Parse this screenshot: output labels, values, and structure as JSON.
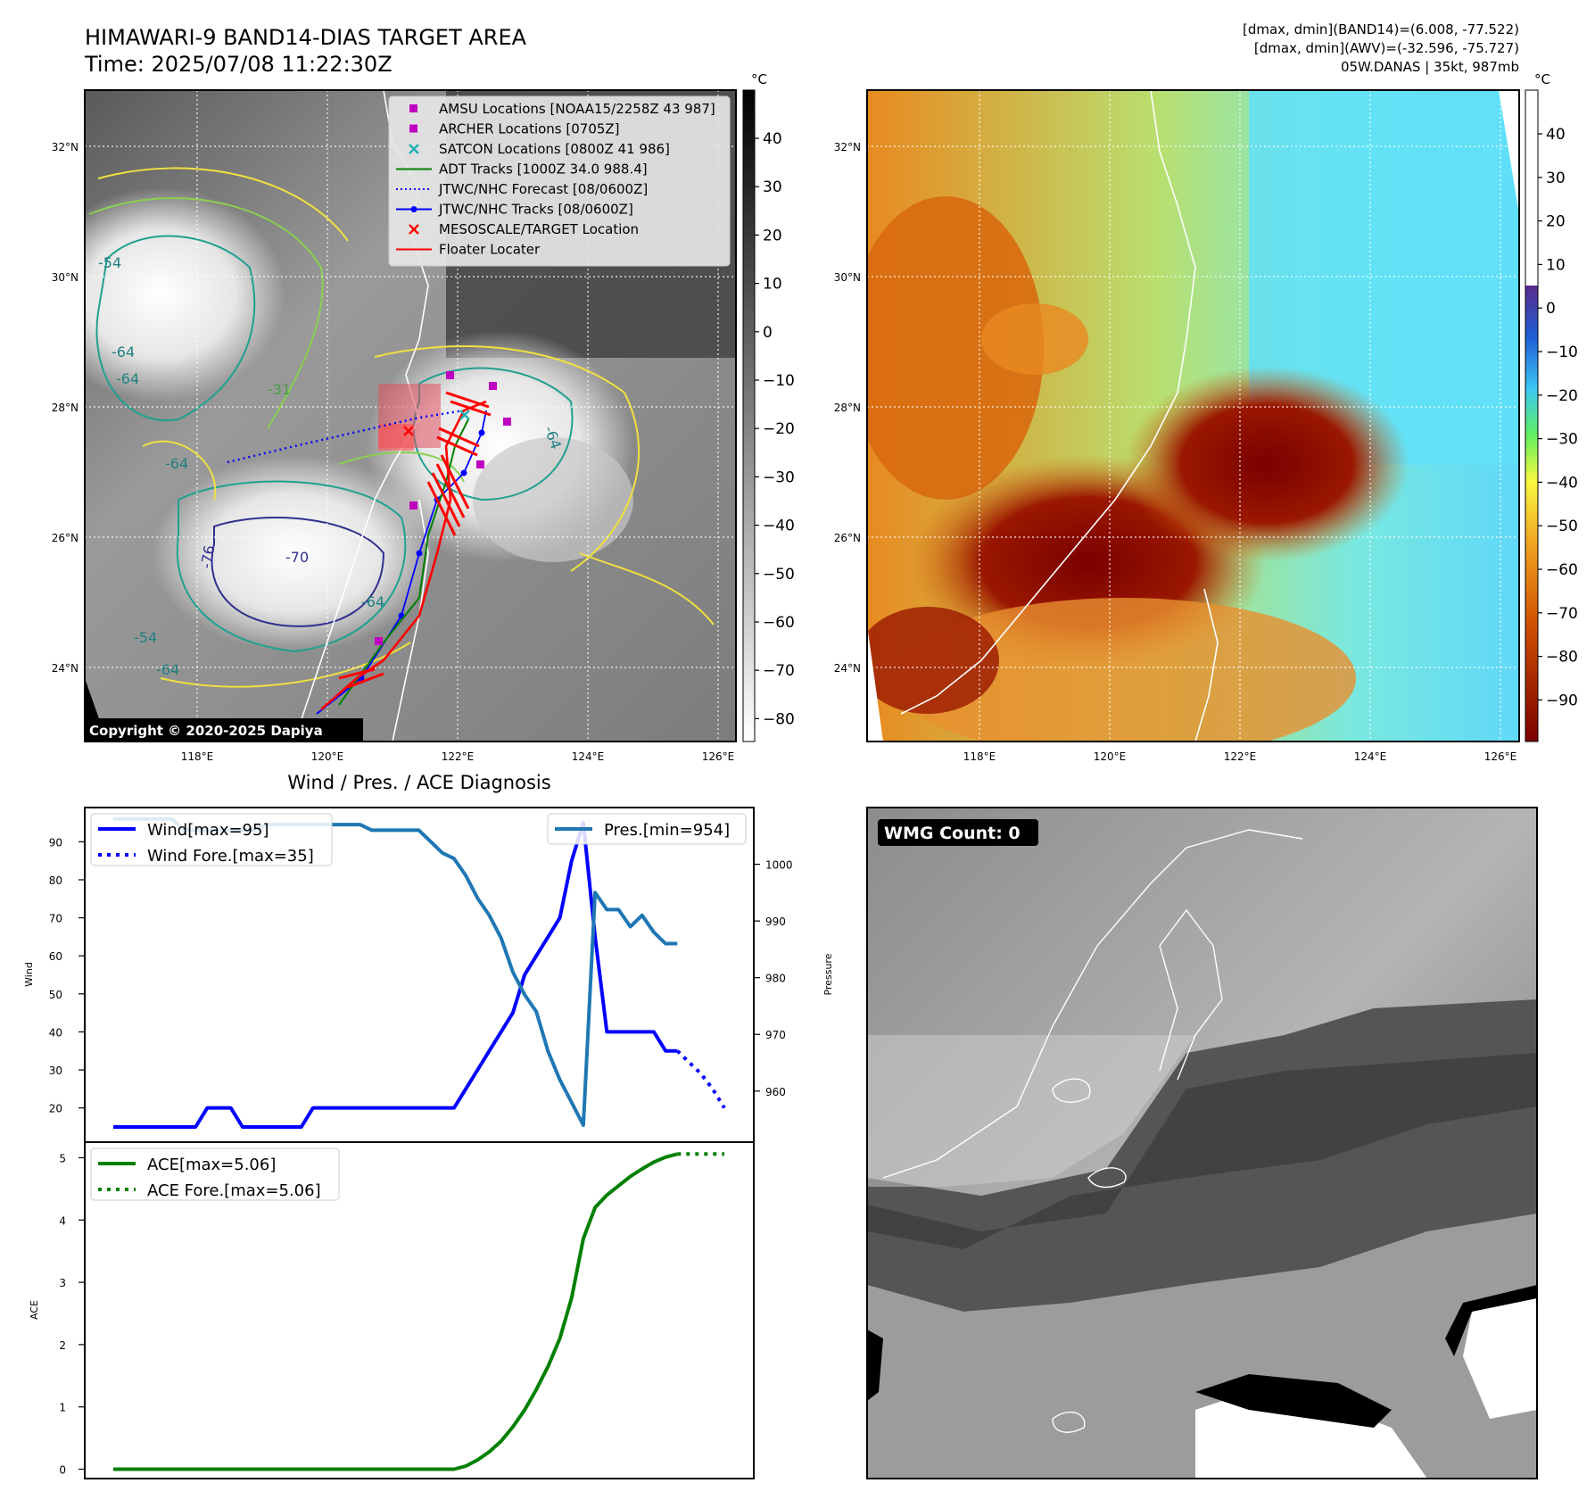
{
  "header": {
    "title_line1": "HIMAWARI-9 BAND14-DIAS TARGET AREA",
    "title_line2": "Time: 2025/07/08 11:22:30Z",
    "info_line1": "[dmax, dmin](BAND14)=(6.008, -77.522)",
    "info_line2": "[dmax, dmin](AWV)=(-32.596, -75.727)",
    "info_line3": "05W.DANAS | 35kt, 987mb"
  },
  "map_axes": {
    "lat_ticks": [
      "32°N",
      "30°N",
      "28°N",
      "26°N",
      "24°N"
    ],
    "lon_ticks": [
      "118°E",
      "120°E",
      "122°E",
      "124°E",
      "126°E"
    ]
  },
  "ir_panel": {
    "legend": [
      {
        "label": "AMSU Locations [NOAA15/2258Z 43 987]",
        "marker": "square",
        "color": "#c000c0"
      },
      {
        "label": "ARCHER Locations [0705Z]",
        "marker": "square",
        "color": "#c000c0"
      },
      {
        "label": "SATCON Locations [0800Z 41 986]",
        "marker": "x",
        "color": "#20b0b0"
      },
      {
        "label": "ADT Tracks [1000Z 34.0 988.4]",
        "marker": "line",
        "color": "#008000"
      },
      {
        "label": "JTWC/NHC Forecast [08/0600Z]",
        "marker": "dotted",
        "color": "#0000ff"
      },
      {
        "label": "JTWC/NHC Tracks [08/0600Z]",
        "marker": "line-dot",
        "color": "#0000ff"
      },
      {
        "label": "MESOSCALE/TARGET Location",
        "marker": "x",
        "color": "#ff0000"
      },
      {
        "label": "Floater Locater",
        "marker": "line",
        "color": "#ff0000"
      }
    ],
    "contour_labels": [
      "-54",
      "-64",
      "-64",
      "-64",
      "-31",
      "-76",
      "-64",
      "-54",
      "-64",
      "-64",
      "-70"
    ],
    "copyright": "Copyright © 2020-2025 Dapiya",
    "colorbar_unit": "°C",
    "colorbar_ticks": [
      "40",
      "30",
      "20",
      "10",
      "0",
      "−10",
      "−20",
      "−30",
      "−40",
      "−50",
      "−60",
      "−70",
      "−80"
    ]
  },
  "wv_panel": {
    "colorbar_unit": "°C",
    "colorbar_ticks": [
      "40",
      "30",
      "20",
      "10",
      "0",
      "−10",
      "−20",
      "−30",
      "−40",
      "−50",
      "−60",
      "−70",
      "−80",
      "−90"
    ]
  },
  "wmg_panel": {
    "label": "WMG Count: 0"
  },
  "chart_data": [
    {
      "type": "line",
      "title": "Wind / Pres. / ACE Diagnosis",
      "ylabel": "Wind",
      "y2label": "Pressure",
      "ylim": [
        11,
        99
      ],
      "y2lim": [
        951,
        1010
      ],
      "yticks": [
        20,
        30,
        40,
        50,
        60,
        70,
        80,
        90
      ],
      "y2ticks": [
        960,
        970,
        980,
        990,
        1000
      ],
      "legend_left": [
        "Wind[max=95]",
        "Wind Fore.[max=35]"
      ],
      "legend_right": [
        "Pres.[min=954]"
      ],
      "series": [
        {
          "name": "Wind[max=95]",
          "axis": "left",
          "color": "#0000ff",
          "style": "solid",
          "values": [
            [
              0,
              15
            ],
            [
              1,
              15
            ],
            [
              2,
              15
            ],
            [
              3,
              15
            ],
            [
              4,
              15
            ],
            [
              5,
              15
            ],
            [
              6,
              15
            ],
            [
              7,
              15
            ],
            [
              8,
              20
            ],
            [
              9,
              20
            ],
            [
              10,
              20
            ],
            [
              11,
              15
            ],
            [
              12,
              15
            ],
            [
              13,
              15
            ],
            [
              14,
              15
            ],
            [
              15,
              15
            ],
            [
              16,
              15
            ],
            [
              17,
              20
            ],
            [
              18,
              20
            ],
            [
              19,
              20
            ],
            [
              20,
              20
            ],
            [
              21,
              20
            ],
            [
              22,
              20
            ],
            [
              23,
              20
            ],
            [
              24,
              20
            ],
            [
              25,
              20
            ],
            [
              26,
              20
            ],
            [
              27,
              20
            ],
            [
              28,
              20
            ],
            [
              29,
              20
            ],
            [
              30,
              25
            ],
            [
              31,
              30
            ],
            [
              32,
              35
            ],
            [
              33,
              40
            ],
            [
              34,
              45
            ],
            [
              35,
              55
            ],
            [
              36,
              60
            ],
            [
              37,
              65
            ],
            [
              38,
              70
            ],
            [
              39,
              85
            ],
            [
              40,
              95
            ],
            [
              41,
              65
            ],
            [
              42,
              40
            ],
            [
              43,
              40
            ],
            [
              44,
              40
            ],
            [
              45,
              40
            ],
            [
              46,
              40
            ],
            [
              47,
              35
            ],
            [
              48,
              35
            ]
          ]
        },
        {
          "name": "Wind Fore.[max=35]",
          "axis": "left",
          "color": "#0000ff",
          "style": "dotted",
          "values": [
            [
              48,
              35
            ],
            [
              49,
              32
            ],
            [
              50,
              29
            ],
            [
              51,
              25
            ],
            [
              52,
              20
            ]
          ]
        },
        {
          "name": "Pres.[min=954]",
          "axis": "right",
          "color": "#1f77b4",
          "style": "solid",
          "values": [
            [
              0,
              1008
            ],
            [
              1,
              1008
            ],
            [
              2,
              1008
            ],
            [
              3,
              1008
            ],
            [
              4,
              1008
            ],
            [
              5,
              1008
            ],
            [
              6,
              1006
            ],
            [
              7,
              1006
            ],
            [
              8,
              1006
            ],
            [
              9,
              1006
            ],
            [
              10,
              1006
            ],
            [
              11,
              1006
            ],
            [
              12,
              1006
            ],
            [
              13,
              1007
            ],
            [
              14,
              1007
            ],
            [
              15,
              1007
            ],
            [
              16,
              1007
            ],
            [
              17,
              1007
            ],
            [
              18,
              1007
            ],
            [
              19,
              1007
            ],
            [
              20,
              1007
            ],
            [
              21,
              1007
            ],
            [
              22,
              1006
            ],
            [
              23,
              1006
            ],
            [
              24,
              1006
            ],
            [
              25,
              1006
            ],
            [
              26,
              1006
            ],
            [
              27,
              1004
            ],
            [
              28,
              1002
            ],
            [
              29,
              1001
            ],
            [
              30,
              998
            ],
            [
              31,
              994
            ],
            [
              32,
              991
            ],
            [
              33,
              987
            ],
            [
              34,
              981
            ],
            [
              35,
              977
            ],
            [
              36,
              974
            ],
            [
              37,
              967
            ],
            [
              38,
              962
            ],
            [
              39,
              958
            ],
            [
              40,
              954
            ],
            [
              41,
              995
            ],
            [
              42,
              992
            ],
            [
              43,
              992
            ],
            [
              44,
              989
            ],
            [
              45,
              991
            ],
            [
              46,
              988
            ],
            [
              47,
              986
            ],
            [
              48,
              986
            ]
          ]
        }
      ]
    },
    {
      "type": "line",
      "ylabel": "ACE",
      "ylim": [
        -0.15,
        5.25
      ],
      "yticks": [
        0,
        1,
        2,
        3,
        4,
        5
      ],
      "legend": [
        "ACE[max=5.06]",
        "ACE Fore.[max=5.06]"
      ],
      "series": [
        {
          "name": "ACE[max=5.06]",
          "color": "#008000",
          "style": "solid",
          "values": [
            [
              0,
              0
            ],
            [
              10,
              0
            ],
            [
              20,
              0
            ],
            [
              29,
              0
            ],
            [
              30,
              0.05
            ],
            [
              31,
              0.15
            ],
            [
              32,
              0.28
            ],
            [
              33,
              0.45
            ],
            [
              34,
              0.68
            ],
            [
              35,
              0.95
            ],
            [
              36,
              1.28
            ],
            [
              37,
              1.65
            ],
            [
              38,
              2.1
            ],
            [
              39,
              2.75
            ],
            [
              40,
              3.7
            ],
            [
              41,
              4.2
            ],
            [
              42,
              4.4
            ],
            [
              43,
              4.55
            ],
            [
              44,
              4.7
            ],
            [
              45,
              4.82
            ],
            [
              46,
              4.93
            ],
            [
              47,
              5.01
            ],
            [
              48,
              5.06
            ]
          ]
        },
        {
          "name": "ACE Fore.[max=5.06]",
          "color": "#008000",
          "style": "dotted",
          "values": [
            [
              48,
              5.06
            ],
            [
              50,
              5.06
            ],
            [
              52,
              5.06
            ]
          ]
        }
      ]
    }
  ]
}
